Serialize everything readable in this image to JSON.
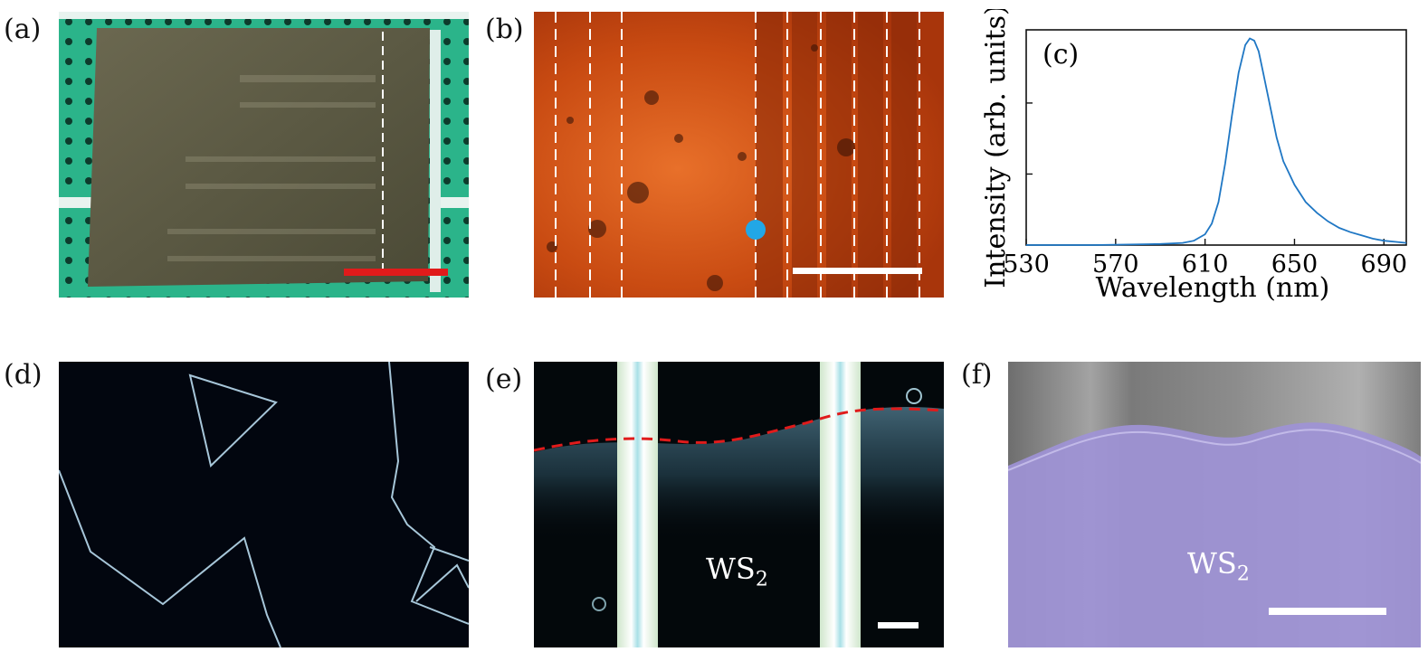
{
  "panels": {
    "a": {
      "label": "(a)"
    },
    "b": {
      "label": "(b)"
    },
    "c": {
      "label": "(c)"
    },
    "d": {
      "label": "(d)"
    },
    "e": {
      "label": "(e)",
      "material": "WS",
      "subscript": "2"
    },
    "f": {
      "label": "(f)",
      "material": "WS",
      "subscript": "2"
    }
  },
  "colors": {
    "scale_bar_a": "#e01b1b",
    "scale_bar": "#ffffff",
    "marker_b": "#22a7e6",
    "boundary_e": "#e01b1b",
    "spectrum": "#1f77c4",
    "ws2_overlay_f": "#9e93d6"
  },
  "chart_data": {
    "type": "line",
    "xlabel": "Wavelength (nm)",
    "ylabel": "Intensity (arb. units)",
    "xlim": [
      530,
      700
    ],
    "ylim": [
      0,
      1.0
    ],
    "xticks": [
      530,
      570,
      610,
      650,
      690
    ],
    "yticks": [
      0.33,
      0.66
    ],
    "series": [
      {
        "x": [
          530,
          560,
          590,
          600,
          605,
          610,
          613,
          616,
          619,
          622,
          625,
          628,
          630,
          632,
          634,
          636,
          639,
          642,
          645,
          650,
          655,
          660,
          665,
          670,
          675,
          680,
          685,
          690,
          695,
          700
        ],
        "values": [
          0.0,
          0.0,
          0.005,
          0.01,
          0.02,
          0.05,
          0.1,
          0.2,
          0.38,
          0.6,
          0.8,
          0.93,
          0.96,
          0.95,
          0.9,
          0.8,
          0.65,
          0.5,
          0.39,
          0.28,
          0.2,
          0.15,
          0.11,
          0.08,
          0.06,
          0.045,
          0.03,
          0.02,
          0.015,
          0.01
        ]
      }
    ]
  }
}
